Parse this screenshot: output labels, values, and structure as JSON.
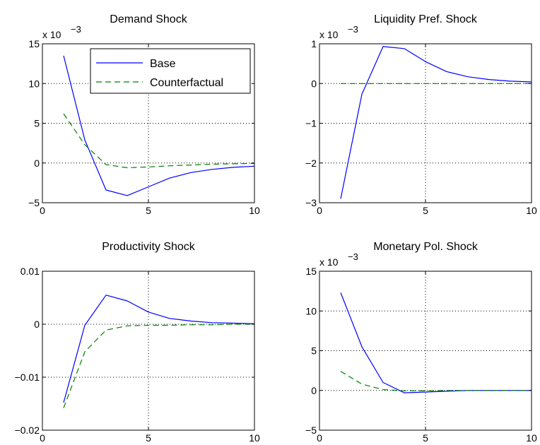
{
  "chart_data": [
    {
      "type": "line",
      "title": "Demand Shock",
      "scale_label": "x 10",
      "scale_exponent": "−3",
      "xlim": [
        0,
        10
      ],
      "ylim": [
        -5,
        15
      ],
      "xticks": [
        0,
        5,
        10
      ],
      "xtick_labels": [
        "0",
        "5",
        "10"
      ],
      "yticks": [
        -5,
        0,
        5,
        10,
        15
      ],
      "ytick_labels": [
        "−5",
        "0",
        "5",
        "10",
        "15"
      ],
      "grid": true,
      "legend": "top-right",
      "x": [
        1,
        2,
        3,
        4,
        5,
        6,
        7,
        8,
        9,
        10
      ],
      "series": [
        {
          "name": "Base",
          "color": "#0000ff",
          "style": "solid",
          "values": [
            13.5,
            2.9,
            -3.4,
            -4.1,
            -3.0,
            -1.9,
            -1.2,
            -0.8,
            -0.55,
            -0.4
          ]
        },
        {
          "name": "Counterfactual",
          "color": "#008000",
          "style": "dashed",
          "values": [
            6.2,
            2.3,
            -0.2,
            -0.6,
            -0.5,
            -0.35,
            -0.25,
            -0.15,
            -0.1,
            -0.05
          ]
        }
      ]
    },
    {
      "type": "line",
      "title": "Liquidity Pref. Shock",
      "scale_label": "x 10",
      "scale_exponent": "−3",
      "xlim": [
        0,
        10
      ],
      "ylim": [
        -3,
        1
      ],
      "xticks": [
        0,
        5,
        10
      ],
      "xtick_labels": [
        "0",
        "5",
        "10"
      ],
      "yticks": [
        -3,
        -2,
        -1,
        0,
        1
      ],
      "ytick_labels": [
        "−3",
        "−2",
        "−1",
        "0",
        "1"
      ],
      "grid": true,
      "x": [
        1,
        2,
        3,
        4,
        5,
        6,
        7,
        8,
        9,
        10
      ],
      "series": [
        {
          "color": "#0000ff",
          "style": "solid",
          "values": [
            -2.9,
            -0.27,
            0.93,
            0.88,
            0.55,
            0.3,
            0.17,
            0.1,
            0.06,
            0.04
          ]
        },
        {
          "color": "#008000",
          "style": "dashed",
          "values": [
            0,
            0,
            0,
            0,
            0,
            0,
            0,
            0,
            0,
            0
          ]
        }
      ]
    },
    {
      "type": "line",
      "title": "Productivity Shock",
      "xlim": [
        0,
        10
      ],
      "ylim": [
        -0.02,
        0.01
      ],
      "xticks": [
        0,
        5,
        10
      ],
      "xtick_labels": [
        "0",
        "5",
        "10"
      ],
      "yticks": [
        -0.02,
        -0.01,
        0,
        0.01
      ],
      "ytick_labels": [
        "−0.02",
        "−0.01",
        "0",
        "0.01"
      ],
      "grid": true,
      "x": [
        1,
        2,
        3,
        4,
        5,
        6,
        7,
        8,
        9,
        10
      ],
      "series": [
        {
          "color": "#0000ff",
          "style": "solid",
          "values": [
            -0.0148,
            -0.0002,
            0.0055,
            0.0044,
            0.0023,
            0.0011,
            0.0006,
            0.0003,
            0.0002,
            0.0001
          ]
        },
        {
          "color": "#008000",
          "style": "dashed",
          "values": [
            -0.0158,
            -0.0052,
            -0.0011,
            -0.0003,
            -0.0002,
            -0.0002,
            -0.0001,
            -0.0001,
            0,
            0
          ]
        }
      ]
    },
    {
      "type": "line",
      "title": "Monetary Pol. Shock",
      "scale_label": "x 10",
      "scale_exponent": "−3",
      "xlim": [
        0,
        10
      ],
      "ylim": [
        -5,
        15
      ],
      "xticks": [
        0,
        5,
        10
      ],
      "xtick_labels": [
        "0",
        "5",
        "10"
      ],
      "yticks": [
        -5,
        0,
        5,
        10,
        15
      ],
      "ytick_labels": [
        "−5",
        "0",
        "5",
        "10",
        "15"
      ],
      "grid": true,
      "x": [
        1,
        2,
        3,
        4,
        5,
        6,
        7,
        8,
        9,
        10
      ],
      "series": [
        {
          "color": "#0000ff",
          "style": "solid",
          "values": [
            12.3,
            5.5,
            1.0,
            -0.3,
            -0.2,
            -0.1,
            0,
            0,
            0,
            0
          ]
        },
        {
          "color": "#008000",
          "style": "dashed",
          "values": [
            2.4,
            0.8,
            0.1,
            -0.05,
            -0.03,
            0,
            0,
            0,
            0,
            0
          ]
        }
      ]
    }
  ]
}
